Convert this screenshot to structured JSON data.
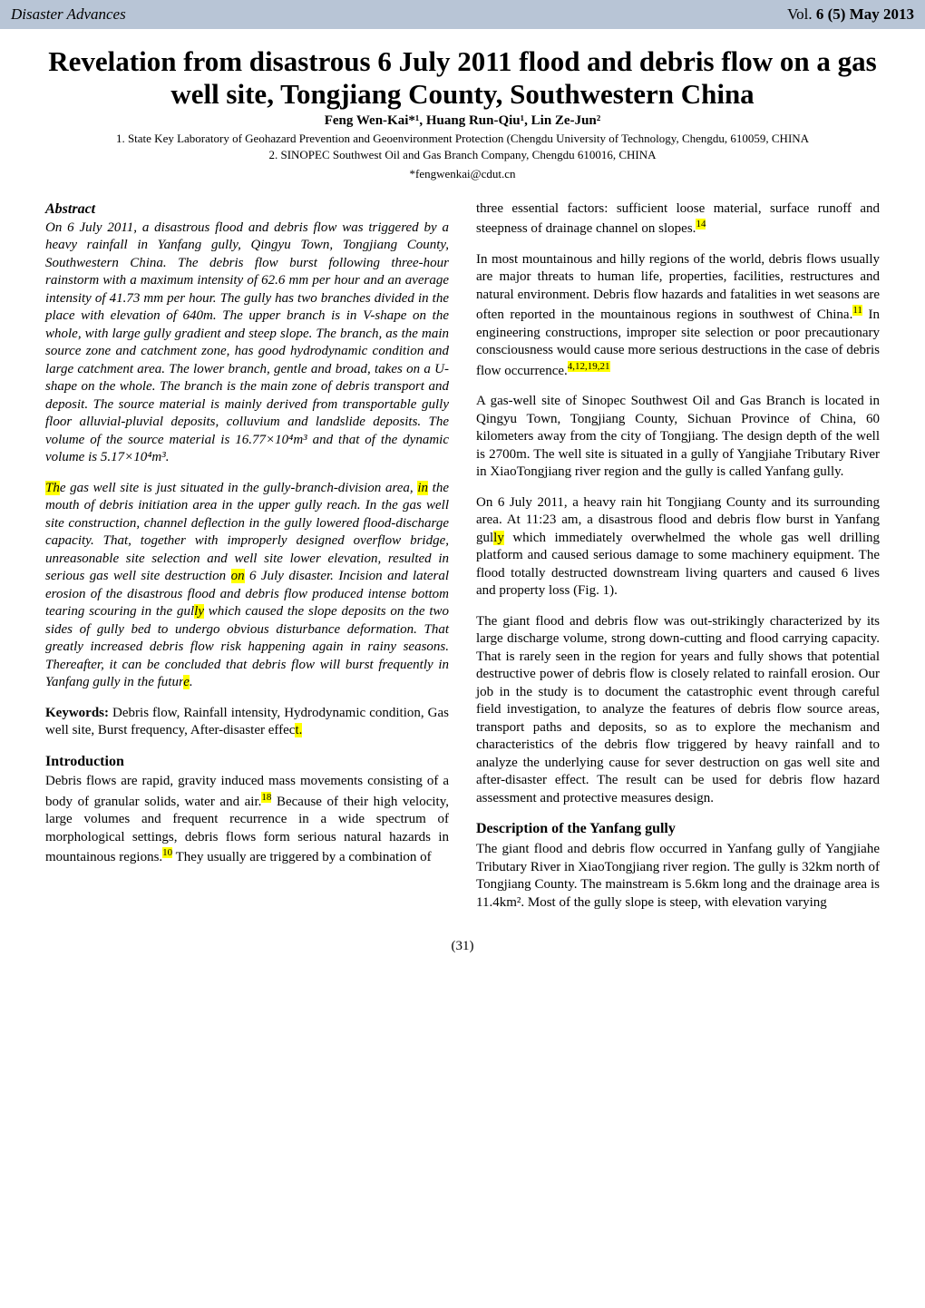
{
  "header": {
    "journal": "Disaster Advances",
    "volume_prefix": "Vol. ",
    "volume": "6 (5) May 2013"
  },
  "title": "Revelation from disastrous 6 July 2011 flood and debris flow on a gas well site, Tongjiang County, Southwestern China",
  "authors": "Feng Wen-Kai*¹, Huang Run-Qiu¹, Lin Ze-Jun²",
  "affiliations": {
    "a1": "1. State Key Laboratory of Geohazard Prevention and Geoenvironment Protection (Chengdu University of Technology, Chengdu, 610059, CHINA",
    "a2": "2. SINOPEC Southwest Oil and Gas Branch Company, Chengdu 610016, CHINA",
    "email": "*fengwenkai@cdut.cn"
  },
  "abstract": {
    "label": "Abstract",
    "p1": "On 6 July 2011, a disastrous flood and debris flow was triggered by a heavy rainfall in Yanfang gully, Qingyu Town, Tongjiang County, Southwestern China. The debris flow burst following three-hour rainstorm with a maximum intensity of 62.6 mm per hour and an average intensity of 41.73 mm per hour. The gully has two branches divided in the place with elevation of 640m. The upper branch is in V-shape on the whole, with large gully gradient and steep slope. The branch, as the main source zone and catchment zone, has good hydrodynamic condition and large catchment area. The lower branch, gentle and broad, takes on a U-shape on the whole. The branch is the main zone of debris transport and deposit. The source material is mainly derived from transportable gully floor alluvial-pluvial deposits, colluvium and landslide deposits. The volume of the source material is 16.77×10⁴m³ and that of the dynamic volume is 5.17×10⁴m³.",
    "p2_a": "Th",
    "p2_b": "e gas well site is just situated in the gully-branch-division area, ",
    "p2_c": "in",
    "p2_d": " the mouth of debris initiation area in the upper gully reach. In the gas well site construction, channel deflection in the gully lowered flood-discharge capacity. That, together with improperly designed overflow bridge, unreasonable site selection and well site lower elevation, resulted in serious gas well site destruction ",
    "p2_e": "on",
    "p2_f": " 6 July disaster. Incision and lateral erosion of the disastrous flood and debris flow produced intense bottom tearing scouring in the gul",
    "p2_g": "ly",
    "p2_h": " which caused the slope deposits on the two sides of gully bed to undergo obvious disturbance deformation. That greatly increased debris flow risk happening again in rainy seasons. Thereafter, it can be concluded that debris flow will burst frequently in Yanfang gully in the futur",
    "p2_i": "e",
    "p2_j": "."
  },
  "keywords": {
    "label": "Keywords:",
    "text_a": " Debris flow, Rainfall intensity, Hydrodynamic condition, Gas well site, Burst frequency, After-disaster effec",
    "text_b": "t."
  },
  "introduction": {
    "heading": "Introduction",
    "p1_a": "Debris flows are rapid, gravity induced mass movements consisting of a body of granular solids, water and air.",
    "p1_ref1": "18",
    "p1_b": " Because of their high velocity, large volumes and frequent recurrence in a wide spectrum of morphological settings, debris flows form serious natural hazards in mountainous regions.",
    "p1_ref2": "10",
    "p1_c": " They usually are triggered by a combination of"
  },
  "right_col": {
    "p1_a": "three essential factors: sufficient loose material, surface runoff and steepness of drainage channel on slopes.",
    "p1_ref": "14",
    "p2_a": "In most mountainous and hilly regions of the world, debris flows usually are major threats to human life, properties, facilities, restructures and natural environment. Debris flow hazards and fatalities in wet seasons are often reported in the mountainous regions in southwest of China.",
    "p2_ref1": "11",
    "p2_b": " In engineering constructions, improper site selection or poor precautionary consciousness would cause more serious destructions in the case of debris flow occurrence.",
    "p2_ref2": "4,12,19,21",
    "p3": "A gas-well site of Sinopec Southwest Oil and Gas Branch is located in Qingyu Town, Tongjiang County, Sichuan Province of China, 60 kilometers away from the city of Tongjiang. The design depth of the well is 2700m. The well site is situated in a gully of Yangjiahe Tributary River in XiaoTongjiang river region and the gully is called Yanfang gully.",
    "p4_a": "On 6 July 2011, a heavy rain hit Tongjiang County and its surrounding area. At 11:23 am, a disastrous flood and debris flow burst in Yanfang gul",
    "p4_b": "ly",
    "p4_c": " which immediately overwhelmed the whole gas well drilling platform and caused serious damage to some machinery equipment. The flood totally destructed downstream living quarters and caused 6 lives and property loss (Fig. 1).",
    "p5": "The giant flood and debris flow was out-strikingly characterized by its large discharge volume, strong down-cutting and flood carrying capacity. That is rarely seen in the region for years and fully shows that potential destructive power of debris flow is closely related to rainfall erosion. Our job in the study is to document the catastrophic event through careful field investigation, to analyze the features of debris flow source areas, transport paths and deposits, so as to explore the mechanism and characteristics of the debris flow triggered by heavy rainfall and to analyze the underlying cause for sever destruction on gas well site and after-disaster effect. The result can be used for debris flow hazard assessment and protective measures design.",
    "desc_heading": "Description of the Yanfang gully",
    "p6": "The giant flood and debris flow occurred in Yanfang gully of Yangjiahe Tributary River in XiaoTongjiang river region. The gully is 32km north of Tongjiang County. The mainstream is 5.6km long and the drainage area is 11.4km². Most of the gully slope is steep, with elevation varying"
  },
  "page_number": "(31)",
  "colors": {
    "header_bg": "#b8c5d6",
    "highlight": "#ffff00",
    "text": "#000000",
    "background": "#ffffff"
  }
}
